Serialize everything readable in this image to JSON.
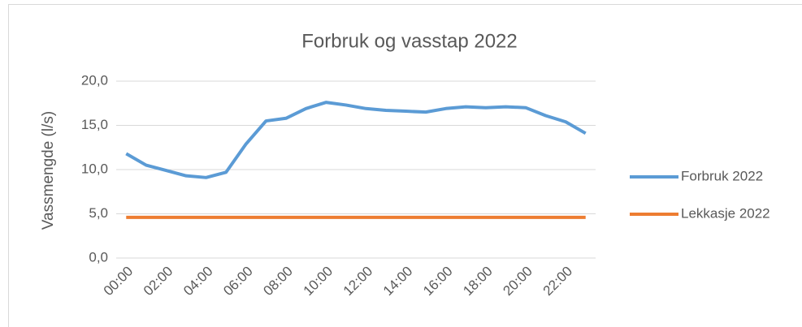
{
  "chart_data": {
    "type": "line",
    "title": "Forbruk og vasstap 2022",
    "y_label": "Vassmengde (l/s)",
    "categories": [
      "00:00",
      null,
      "02:00",
      null,
      "04:00",
      null,
      "06:00",
      null,
      "08:00",
      null,
      "10:00",
      null,
      "12:00",
      null,
      "14:00",
      null,
      "16:00",
      null,
      "18:00",
      null,
      "20:00",
      null,
      "22:00",
      null
    ],
    "series": [
      {
        "name": "Forbruk 2022",
        "color": "#5b9bd5",
        "values": [
          11.8,
          10.5,
          9.9,
          9.3,
          9.1,
          9.7,
          12.9,
          15.5,
          15.8,
          16.9,
          17.6,
          17.3,
          16.9,
          16.7,
          16.6,
          16.5,
          16.9,
          17.1,
          17.0,
          17.1,
          17.0,
          16.1,
          15.4,
          14.1
        ]
      },
      {
        "name": "Lekkasje 2022",
        "color": "#ed7d31",
        "values": [
          4.6,
          4.6,
          4.6,
          4.6,
          4.6,
          4.6,
          4.6,
          4.6,
          4.6,
          4.6,
          4.6,
          4.6,
          4.6,
          4.6,
          4.6,
          4.6,
          4.6,
          4.6,
          4.6,
          4.6,
          4.6,
          4.6,
          4.6,
          4.6
        ]
      }
    ],
    "ylim": [
      0,
      20
    ],
    "yticks": [
      {
        "value": 0,
        "label": "0,0"
      },
      {
        "value": 5,
        "label": "5,0"
      },
      {
        "value": 10,
        "label": "10,0"
      },
      {
        "value": 15,
        "label": "15,0"
      },
      {
        "value": 20,
        "label": "20,0"
      }
    ],
    "grid": true,
    "legend": "right"
  }
}
